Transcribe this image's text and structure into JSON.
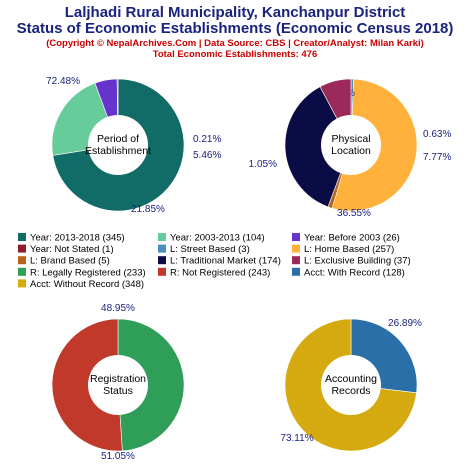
{
  "header": {
    "title_line1": "Laljhadi Rural Municipality, Kanchanpur District",
    "title_line2": "Status of Economic Establishments (Economic Census 2018)",
    "copyright": "(Copyright © NepalArchives.Com | Data Source: CBS | Creator/Analyst: Milan Karki)",
    "total": "Total Economic Establishments: 476"
  },
  "chart_data": [
    {
      "type": "pie",
      "center_label": [
        "Period of",
        "Establishment"
      ],
      "slices": [
        {
          "label": "Year: 2013-2018",
          "value": 345,
          "pct": "72.48%",
          "color": "#116b67"
        },
        {
          "label": "Year: 2003-2013",
          "value": 104,
          "pct": "21.85%",
          "color": "#66cc99"
        },
        {
          "label": "Year: Before 2003",
          "value": 26,
          "pct": "5.46%",
          "color": "#6633cc"
        },
        {
          "label": "Year: Not Stated",
          "value": 1,
          "pct": "0.21%",
          "color": "#8b1e2f"
        }
      ]
    },
    {
      "type": "pie",
      "center_label": [
        "Physical",
        "Location"
      ],
      "slices": [
        {
          "label": "L: Street Based",
          "value": 3,
          "pct": "0.63%",
          "color": "#4a8fb8"
        },
        {
          "label": "L: Home Based",
          "value": 257,
          "pct": "53.99%",
          "color": "#ffb13b"
        },
        {
          "label": "L: Brand Based",
          "value": 5,
          "pct": "1.05%",
          "color": "#b5651d"
        },
        {
          "label": "L: Traditional Market",
          "value": 174,
          "pct": "36.55%",
          "color": "#0b0b45"
        },
        {
          "label": "L: Exclusive Building",
          "value": 37,
          "pct": "7.77%",
          "color": "#9b2a5a"
        }
      ]
    },
    {
      "type": "pie",
      "center_label": [
        "Registration",
        "Status"
      ],
      "slices": [
        {
          "label": "R: Legally Registered",
          "value": 233,
          "pct": "48.95%",
          "color": "#2e9e58"
        },
        {
          "label": "R: Not Registered",
          "value": 243,
          "pct": "51.05%",
          "color": "#c0392b"
        }
      ]
    },
    {
      "type": "pie",
      "center_label": [
        "Accounting",
        "Records"
      ],
      "slices": [
        {
          "label": "Acct: With Record",
          "value": 128,
          "pct": "26.89%",
          "color": "#2a6fa8"
        },
        {
          "label": "Acct: Without Record",
          "value": 348,
          "pct": "73.11%",
          "color": "#d4aa10"
        }
      ]
    }
  ],
  "legend": [
    {
      "text": "Year: 2013-2018 (345)",
      "color": "#116b67"
    },
    {
      "text": "Year: 2003-2013 (104)",
      "color": "#66cc99"
    },
    {
      "text": "Year: Before 2003 (26)",
      "color": "#6633cc"
    },
    {
      "text": "Year: Not Stated (1)",
      "color": "#8b1e2f"
    },
    {
      "text": "L: Street Based (3)",
      "color": "#4a8fb8"
    },
    {
      "text": "L: Home Based (257)",
      "color": "#ffb13b"
    },
    {
      "text": "L: Brand Based (5)",
      "color": "#b5651d"
    },
    {
      "text": "L: Traditional Market (174)",
      "color": "#0b0b45"
    },
    {
      "text": "L: Exclusive Building (37)",
      "color": "#9b2a5a"
    },
    {
      "text": "R: Legally Registered (233)",
      "color": "#2e9e58"
    },
    {
      "text": "R: Not Registered (243)",
      "color": "#c0392b"
    },
    {
      "text": "Acct: With Record (128)",
      "color": "#2a6fa8"
    },
    {
      "text": "Acct: Without Record (348)",
      "color": "#d4aa10"
    }
  ]
}
